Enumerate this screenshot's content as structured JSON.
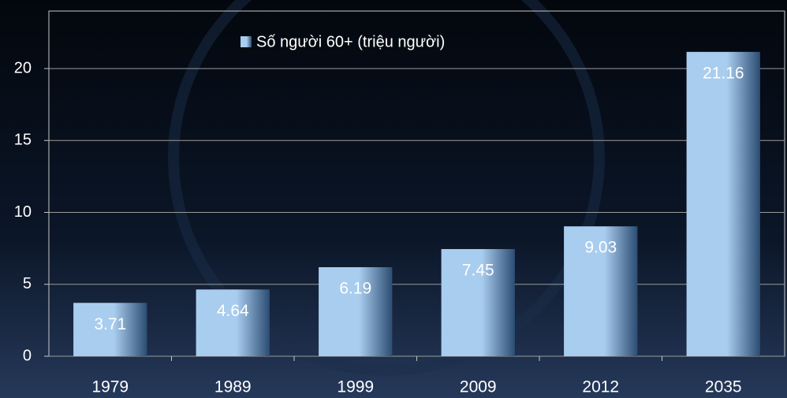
{
  "chart_data": {
    "type": "bar",
    "categories": [
      "1979",
      "1989",
      "1999",
      "2009",
      "2012",
      "2035"
    ],
    "series": [
      {
        "name": "Số người 60+ (triệu người)",
        "color": "#a9cdef",
        "values": [
          3.71,
          4.64,
          6.19,
          7.45,
          9.03,
          21.16
        ]
      }
    ],
    "ylim": [
      0,
      24
    ],
    "yticks": [
      0,
      5,
      10,
      15,
      20
    ],
    "grid": true,
    "legend": "top"
  }
}
